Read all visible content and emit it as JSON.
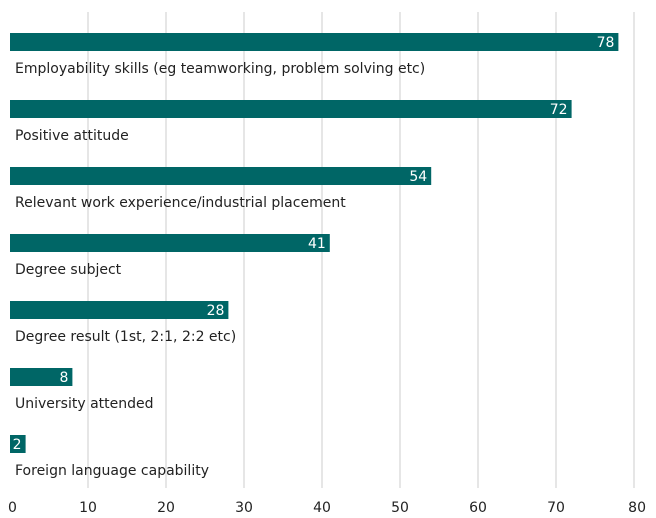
{
  "chart_data": {
    "type": "bar",
    "orientation": "horizontal",
    "categories": [
      "Employability skills (eg teamworking, problem solving etc)",
      "Positive attitude",
      "Relevant work experience/industrial placement",
      "Degree subject",
      "Degree result (1st, 2:1, 2:2 etc)",
      "University attended",
      "Foreign language capability"
    ],
    "values": [
      78,
      72,
      54,
      41,
      28,
      8,
      2
    ],
    "data_labels": [
      "78",
      "72",
      "54",
      "41",
      "28",
      "8",
      "2"
    ],
    "title": "",
    "xlabel": "",
    "ylabel": "",
    "xlim": [
      0,
      80
    ],
    "xticks": [
      "0",
      "10",
      "20",
      "30",
      "40",
      "50",
      "60",
      "70",
      "80"
    ],
    "grid": "vertical",
    "legend": "none",
    "colors": {
      "bar": "#006666",
      "grid": "#cccccc",
      "text": "#222222",
      "value_text": "#ffffff"
    }
  }
}
